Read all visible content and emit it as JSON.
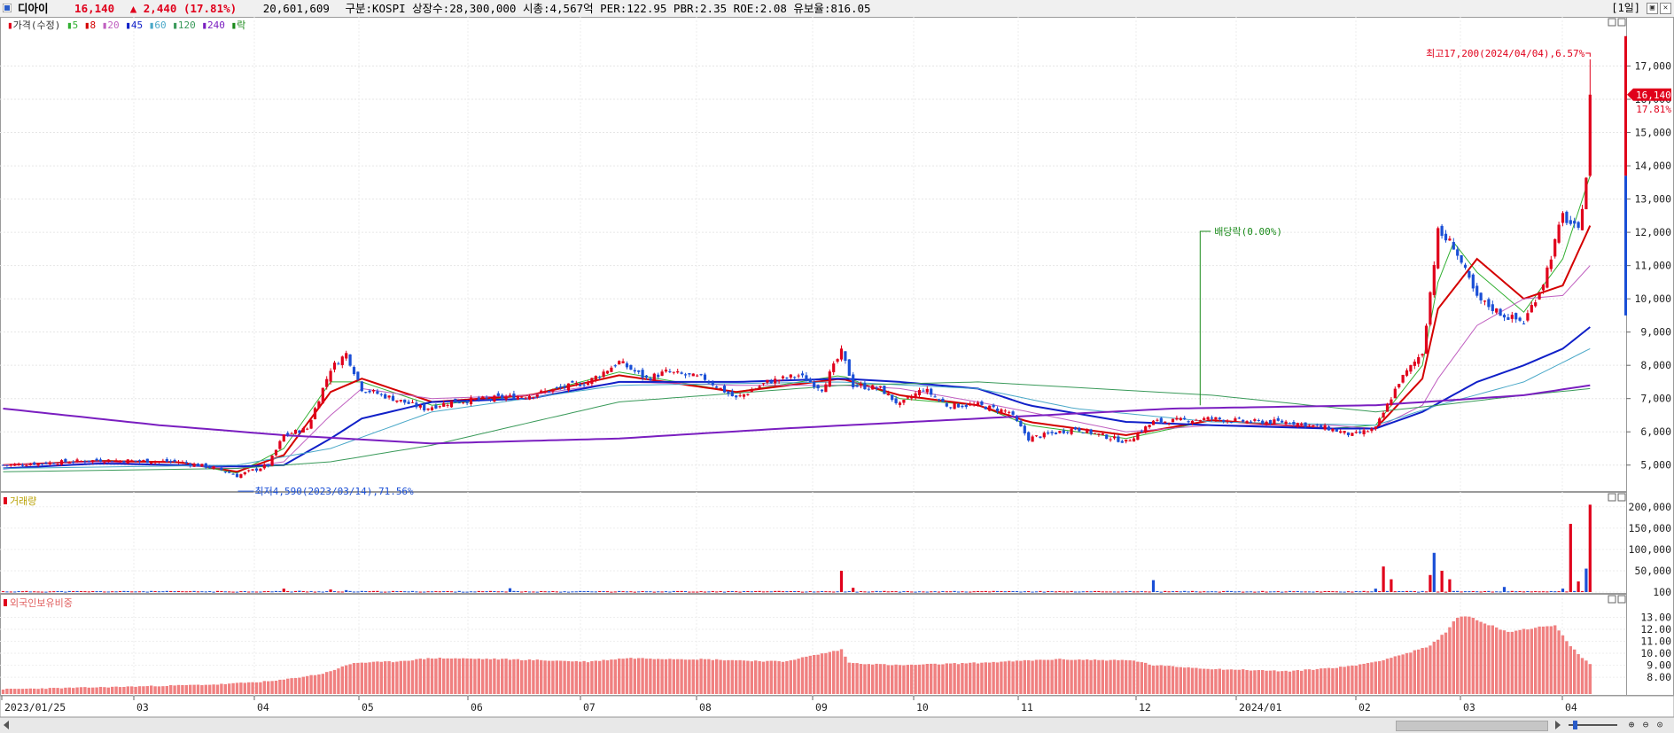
{
  "header": {
    "name": "디아이",
    "price": "16,140",
    "change": "▲ 2,440 (17.81%)",
    "volume": "20,601,609",
    "info": "구분:KOSPI 상장수:28,300,000 시총:4,567억 PER:122.95 PBR:2.35 ROE:2.08 유보율:816.05",
    "period": "[1일]",
    "window_buttons": [
      "▣",
      "✕"
    ]
  },
  "colors": {
    "up": "#e0001b",
    "down": "#1a4fd6",
    "ma5": "#33b033",
    "ma8": "#d40000",
    "ma20": "#c060c0",
    "ma45": "#1020c8",
    "ma60": "#4aa8c8",
    "ma120": "#3a9a5a",
    "ma240": "#7a1ec0",
    "foreign": "#f08080"
  },
  "chart_data": [
    {
      "type": "candlestick",
      "panel": "price",
      "legend": [
        {
          "label": "가격(수정)",
          "color": "#e0001b"
        },
        {
          "label": "5",
          "color": "#33b033"
        },
        {
          "label": "8",
          "color": "#d40000"
        },
        {
          "label": "20",
          "color": "#c060c0"
        },
        {
          "label": "45",
          "color": "#1020c8"
        },
        {
          "label": "60",
          "color": "#4aa8c8"
        },
        {
          "label": "120",
          "color": "#3a9a5a"
        },
        {
          "label": "240",
          "color": "#7a1ec0"
        },
        {
          "label": "락",
          "color": "#1a8a1a"
        }
      ],
      "x_labels": [
        "2023/01/25",
        "03",
        "04",
        "05",
        "06",
        "07",
        "08",
        "09",
        "10",
        "11",
        "12",
        "2024/01",
        "02",
        "03",
        "04"
      ],
      "ylim": [
        4300,
        18000
      ],
      "yticks": [
        5000,
        6000,
        7000,
        8000,
        9000,
        10000,
        11000,
        12000,
        13000,
        14000,
        15000,
        16000,
        17000
      ],
      "ytick_labels": [
        "5,000",
        "6,000",
        "7,000",
        "8,000",
        "9,000",
        "10,000",
        "11,000",
        "12,000",
        "13,000",
        "14,000",
        "15,000",
        "16,000",
        "17,000"
      ],
      "close_path": [
        [
          0,
          5000
        ],
        [
          25,
          5150
        ],
        [
          45,
          5100
        ],
        [
          55,
          4900
        ],
        [
          60,
          4680
        ],
        [
          68,
          5000
        ],
        [
          72,
          5900
        ],
        [
          78,
          6100
        ],
        [
          84,
          7900
        ],
        [
          88,
          8350
        ],
        [
          92,
          7300
        ],
        [
          100,
          7000
        ],
        [
          108,
          6700
        ],
        [
          115,
          6900
        ],
        [
          125,
          7000
        ],
        [
          135,
          7100
        ],
        [
          150,
          7500
        ],
        [
          158,
          8100
        ],
        [
          165,
          7600
        ],
        [
          170,
          7800
        ],
        [
          180,
          7600
        ],
        [
          188,
          7000
        ],
        [
          196,
          7500
        ],
        [
          204,
          7700
        ],
        [
          210,
          7300
        ],
        [
          215,
          8400
        ],
        [
          218,
          7400
        ],
        [
          225,
          7300
        ],
        [
          230,
          6800
        ],
        [
          236,
          7300
        ],
        [
          242,
          6800
        ],
        [
          250,
          6800
        ],
        [
          258,
          6600
        ],
        [
          263,
          5800
        ],
        [
          275,
          6100
        ],
        [
          288,
          5700
        ],
        [
          295,
          6300
        ],
        [
          310,
          6400
        ],
        [
          320,
          6300
        ],
        [
          330,
          6300
        ],
        [
          340,
          6100
        ],
        [
          346,
          5900
        ],
        [
          352,
          6100
        ],
        [
          358,
          7500
        ],
        [
          364,
          8400
        ],
        [
          368,
          12000
        ],
        [
          372,
          11600
        ],
        [
          378,
          10000
        ],
        [
          385,
          9500
        ],
        [
          390,
          9300
        ],
        [
          395,
          10500
        ],
        [
          400,
          12500
        ],
        [
          404,
          12000
        ],
        [
          406,
          13700
        ],
        [
          407,
          16140
        ]
      ],
      "series": [
        {
          "name": "5",
          "values": [
            [
              0,
              5000
            ],
            [
              25,
              5140
            ],
            [
              45,
              5080
            ],
            [
              60,
              4760
            ],
            [
              72,
              5500
            ],
            [
              84,
              7500
            ],
            [
              92,
              7500
            ],
            [
              110,
              6800
            ],
            [
              135,
              7100
            ],
            [
              158,
              7800
            ],
            [
              188,
              7200
            ],
            [
              215,
              7700
            ],
            [
              230,
              7000
            ],
            [
              250,
              6800
            ],
            [
              263,
              6200
            ],
            [
              288,
              5800
            ],
            [
              310,
              6350
            ],
            [
              340,
              6100
            ],
            [
              352,
              6200
            ],
            [
              364,
              8000
            ],
            [
              368,
              10500
            ],
            [
              372,
              11700
            ],
            [
              378,
              10800
            ],
            [
              390,
              9600
            ],
            [
              400,
              11200
            ],
            [
              407,
              13700
            ]
          ]
        },
        {
          "name": "8",
          "values": [
            [
              0,
              5000
            ],
            [
              25,
              5120
            ],
            [
              45,
              5090
            ],
            [
              60,
              4800
            ],
            [
              72,
              5300
            ],
            [
              84,
              7200
            ],
            [
              92,
              7600
            ],
            [
              110,
              6900
            ],
            [
              135,
              7100
            ],
            [
              158,
              7700
            ],
            [
              188,
              7200
            ],
            [
              215,
              7600
            ],
            [
              230,
              7100
            ],
            [
              250,
              6800
            ],
            [
              263,
              6300
            ],
            [
              288,
              5900
            ],
            [
              310,
              6350
            ],
            [
              340,
              6100
            ],
            [
              352,
              6100
            ],
            [
              364,
              7600
            ],
            [
              368,
              9700
            ],
            [
              378,
              11200
            ],
            [
              390,
              10000
            ],
            [
              400,
              10400
            ],
            [
              407,
              12200
            ]
          ]
        },
        {
          "name": "20",
          "values": [
            [
              0,
              5000
            ],
            [
              25,
              5100
            ],
            [
              60,
              4900
            ],
            [
              72,
              5100
            ],
            [
              84,
              6500
            ],
            [
              92,
              7300
            ],
            [
              110,
              7000
            ],
            [
              135,
              7100
            ],
            [
              158,
              7500
            ],
            [
              188,
              7400
            ],
            [
              215,
              7400
            ],
            [
              230,
              7300
            ],
            [
              250,
              6900
            ],
            [
              263,
              6600
            ],
            [
              288,
              6000
            ],
            [
              310,
              6200
            ],
            [
              340,
              6200
            ],
            [
              352,
              6100
            ],
            [
              364,
              6800
            ],
            [
              368,
              7600
            ],
            [
              378,
              9200
            ],
            [
              390,
              10000
            ],
            [
              400,
              10100
            ],
            [
              407,
              11000
            ]
          ]
        },
        {
          "name": "45",
          "values": [
            [
              0,
              4900
            ],
            [
              25,
              5050
            ],
            [
              60,
              4960
            ],
            [
              72,
              5000
            ],
            [
              84,
              5800
            ],
            [
              92,
              6400
            ],
            [
              110,
              6900
            ],
            [
              135,
              7000
            ],
            [
              158,
              7500
            ],
            [
              188,
              7500
            ],
            [
              215,
              7600
            ],
            [
              230,
              7500
            ],
            [
              250,
              7300
            ],
            [
              263,
              6800
            ],
            [
              288,
              6300
            ],
            [
              310,
              6200
            ],
            [
              340,
              6100
            ],
            [
              352,
              6100
            ],
            [
              364,
              6600
            ],
            [
              378,
              7500
            ],
            [
              390,
              8000
            ],
            [
              400,
              8500
            ],
            [
              407,
              9150
            ]
          ]
        },
        {
          "name": "60",
          "values": [
            [
              0,
              4900
            ],
            [
              60,
              5000
            ],
            [
              84,
              5500
            ],
            [
              110,
              6600
            ],
            [
              158,
              7400
            ],
            [
              215,
              7500
            ],
            [
              250,
              7300
            ],
            [
              275,
              6700
            ],
            [
              310,
              6300
            ],
            [
              352,
              6200
            ],
            [
              368,
              6800
            ],
            [
              390,
              7500
            ],
            [
              407,
              8500
            ]
          ]
        },
        {
          "name": "120",
          "values": [
            [
              0,
              4800
            ],
            [
              60,
              4900
            ],
            [
              84,
              5100
            ],
            [
              110,
              5600
            ],
            [
              158,
              6900
            ],
            [
              215,
              7400
            ],
            [
              250,
              7500
            ],
            [
              310,
              7100
            ],
            [
              352,
              6600
            ],
            [
              368,
              6800
            ],
            [
              390,
              7100
            ],
            [
              407,
              7300
            ]
          ]
        },
        {
          "name": "240",
          "values": [
            [
              0,
              6700
            ],
            [
              40,
              6200
            ],
            [
              72,
              5900
            ],
            [
              110,
              5650
            ],
            [
              158,
              5800
            ],
            [
              200,
              6100
            ],
            [
              250,
              6400
            ],
            [
              300,
              6700
            ],
            [
              352,
              6800
            ],
            [
              390,
              7100
            ],
            [
              407,
              7400
            ]
          ]
        }
      ],
      "annotations": [
        {
          "text": "최고17,200(2024/04/04),6.57%",
          "index": 407,
          "value": 17200
        },
        {
          "text": "최저4,590(2023/03/14),71.56%",
          "index": 60,
          "value": 4590
        },
        {
          "text": "배당락(0.00%)",
          "index": 307,
          "value": 6800
        }
      ],
      "last_price_label": "16,140",
      "last_change_label": "17.81%"
    },
    {
      "type": "bar",
      "panel": "volume",
      "title": "거래량",
      "ylim": [
        0,
        210000
      ],
      "yticks": [
        100,
        50000,
        100000,
        150000,
        200000
      ],
      "ytick_labels": [
        "100",
        "50,000",
        "100,000",
        "150,000",
        "200,000"
      ],
      "spikes": [
        [
          72,
          8000
        ],
        [
          76,
          3000
        ],
        [
          84,
          6000
        ],
        [
          88,
          4500
        ],
        [
          130,
          9000
        ],
        [
          215,
          50000
        ],
        [
          218,
          10000
        ],
        [
          295,
          28000
        ],
        [
          352,
          8000
        ],
        [
          354,
          60000
        ],
        [
          356,
          30000
        ],
        [
          366,
          40000
        ],
        [
          367,
          92000
        ],
        [
          369,
          50000
        ],
        [
          371,
          30000
        ],
        [
          385,
          12000
        ],
        [
          400,
          8000
        ],
        [
          402,
          160000
        ],
        [
          404,
          25000
        ],
        [
          406,
          55000
        ],
        [
          407,
          205000
        ]
      ]
    },
    {
      "type": "bar",
      "panel": "foreign_ownership",
      "title": "외국인보유비중",
      "ylim": [
        6.6,
        14.0
      ],
      "yticks": [
        8,
        9,
        10,
        11,
        12,
        13
      ],
      "ytick_labels": [
        "8.00",
        "9.00",
        "10.00",
        "11.00",
        "12.00",
        "13.00"
      ],
      "path": [
        [
          0,
          7.0
        ],
        [
          30,
          7.2
        ],
        [
          55,
          7.4
        ],
        [
          70,
          7.7
        ],
        [
          82,
          8.3
        ],
        [
          90,
          9.2
        ],
        [
          100,
          9.3
        ],
        [
          110,
          9.6
        ],
        [
          130,
          9.5
        ],
        [
          150,
          9.3
        ],
        [
          160,
          9.6
        ],
        [
          180,
          9.5
        ],
        [
          200,
          9.3
        ],
        [
          215,
          10.3
        ],
        [
          217,
          9.2
        ],
        [
          230,
          9.0
        ],
        [
          250,
          9.2
        ],
        [
          270,
          9.5
        ],
        [
          290,
          9.4
        ],
        [
          295,
          9.0
        ],
        [
          310,
          8.7
        ],
        [
          330,
          8.5
        ],
        [
          345,
          8.9
        ],
        [
          352,
          9.3
        ],
        [
          360,
          10.0
        ],
        [
          366,
          10.6
        ],
        [
          370,
          11.8
        ],
        [
          373,
          13.0
        ],
        [
          376,
          13.1
        ],
        [
          380,
          12.5
        ],
        [
          386,
          11.8
        ],
        [
          392,
          12.1
        ],
        [
          398,
          12.3
        ],
        [
          401,
          11.0
        ],
        [
          404,
          9.9
        ],
        [
          407,
          9.1
        ]
      ]
    }
  ]
}
